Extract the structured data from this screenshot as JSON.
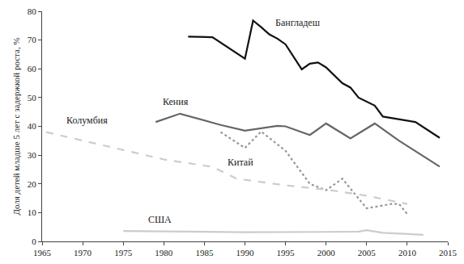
{
  "chart_data": {
    "type": "line",
    "y_label": "Доля детей младше 5 лет с задержкой роста, %",
    "xlim": [
      1965,
      2015
    ],
    "xticks": [
      1965,
      1970,
      1975,
      1980,
      1985,
      1990,
      1995,
      2000,
      2005,
      2010,
      2015
    ],
    "ylim": [
      0,
      80
    ],
    "yticks": [
      0,
      10,
      20,
      30,
      40,
      50,
      60,
      70,
      80
    ],
    "grid": false,
    "series": [
      {
        "name": "Бангладеш",
        "color": "#111111",
        "line_style": "solid",
        "x": [
          1983,
          1986,
          1990,
          1991,
          1992,
          1993,
          1994,
          1995,
          1997,
          1998,
          1999,
          2000,
          2002,
          2003,
          2004,
          2006,
          2007,
          2011,
          2014
        ],
        "values": [
          71.2,
          71,
          63.5,
          76.8,
          74.5,
          72,
          70.5,
          68.5,
          59.8,
          61.8,
          62.2,
          60.5,
          55,
          53.5,
          50,
          47.2,
          43.4,
          41.5,
          36
        ]
      },
      {
        "name": "Кения",
        "color": "#666666",
        "line_style": "solid",
        "x": [
          1979,
          1982,
          1987,
          1990,
          1994,
          1995,
          1998,
          2000,
          2003,
          2006,
          2009,
          2014
        ],
        "values": [
          41.5,
          44.4,
          40.5,
          38.5,
          40.2,
          40,
          37,
          41,
          35.8,
          41,
          35,
          26
        ]
      },
      {
        "name": "Китай",
        "color": "#999999",
        "line_style": "dot",
        "x": [
          1987,
          1990,
          1992,
          1995,
          1998,
          2000,
          2002,
          2005,
          2008,
          2009,
          2010
        ],
        "values": [
          38,
          32.5,
          38.2,
          31.5,
          20,
          17.8,
          21.8,
          11.5,
          13,
          13,
          9.5
        ]
      },
      {
        "name": "Колумбия",
        "color": "#cccccc",
        "line_style": "dash",
        "x": [
          1965.5,
          1980,
          1986,
          1989,
          1995,
          2000,
          2005,
          2010
        ],
        "values": [
          38,
          28.5,
          25.9,
          21.8,
          19.5,
          18,
          15.9,
          13
        ]
      },
      {
        "name": "США",
        "color": "#cccccc",
        "line_style": "solid",
        "x": [
          1975,
          1980,
          1990,
          2000,
          2004,
          2005,
          2007,
          2012
        ],
        "values": [
          3.6,
          3.5,
          3.2,
          3.3,
          3.4,
          3.9,
          3.0,
          2.3
        ]
      }
    ]
  }
}
